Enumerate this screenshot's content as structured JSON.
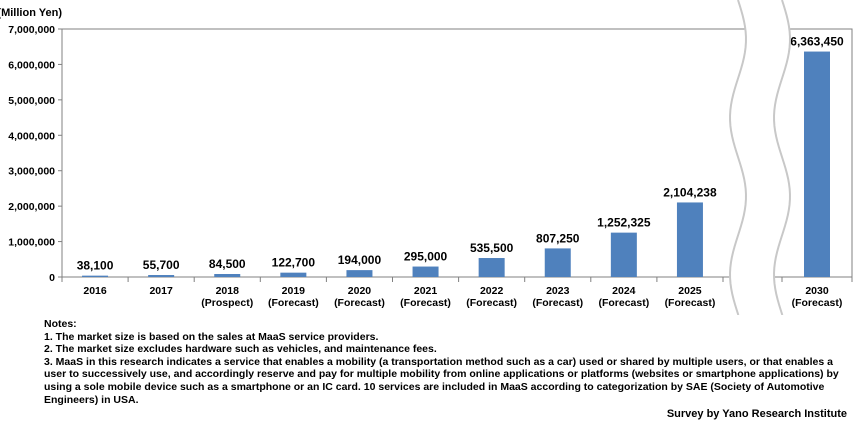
{
  "chart_data": {
    "type": "bar",
    "unit_label": "(Million Yen)",
    "categories": [
      [
        "2016"
      ],
      [
        "2017"
      ],
      [
        "2018",
        "(Prospect)"
      ],
      [
        "2019",
        "(Forecast)"
      ],
      [
        "2020",
        "(Forecast)"
      ],
      [
        "2021",
        "(Forecast)"
      ],
      [
        "2022",
        "(Forecast)"
      ],
      [
        "2023",
        "(Forecast)"
      ],
      [
        "2024",
        "(Forecast)"
      ],
      [
        "2025",
        "(Forecast)"
      ],
      [
        "2030",
        "(Forecast)"
      ]
    ],
    "values": [
      38100,
      55700,
      84500,
      122700,
      194000,
      295000,
      535500,
      807250,
      1252325,
      2104238,
      6363450
    ],
    "value_labels": [
      "38,100",
      "55,700",
      "84,500",
      "122,700",
      "194,000",
      "295,000",
      "535,500",
      "807,250",
      "1,252,325",
      "2,104,238",
      "6,363,450"
    ],
    "ylim": [
      0,
      7000000
    ],
    "yticks": [
      0,
      1000000,
      2000000,
      3000000,
      4000000,
      5000000,
      6000000,
      7000000
    ],
    "ytick_labels": [
      "0",
      "1,000,000",
      "2,000,000",
      "3,000,000",
      "4,000,000",
      "5,000,000",
      "6,000,000",
      "7,000,000"
    ],
    "axis_break_between": [
      "2025",
      "2030"
    ],
    "grid": false,
    "bar_color": "#4f81bd"
  },
  "notes": {
    "heading": "Notes:",
    "lines": [
      "1.  The market size is based on the sales at MaaS service  providers.",
      "2. The market size  excludes hardware such as vehicles, and maintenance fees.",
      "3. MaaS in this research indicates a service that enables a mobility (a transportation method such as a car) used or shared by multiple users, or that enables a user to successively use, and accordingly reserve and pay for multiple mobility from online applications or platforms (websites or smartphone applications) by using a sole mobile device such as a smartphone or an IC  card. 10 services are included in MaaS according to categorization by SAE (Society of Automotive Engineers) in USA."
    ]
  },
  "source": "Survey by Yano Research Institute"
}
